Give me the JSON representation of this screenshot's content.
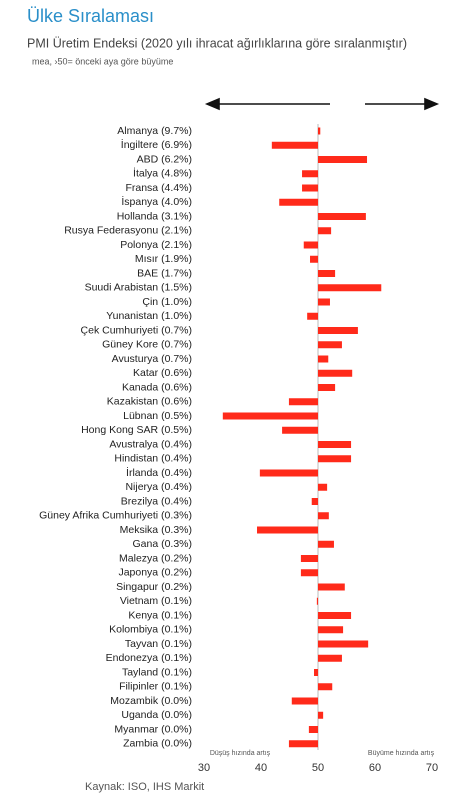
{
  "chart_data": {
    "type": "bar",
    "orientation": "horizontal",
    "title": "Ülke Sıralaması",
    "subtitle": "PMI Üretim Endeksi (2020 yılı ihracat ağırlıklarına göre sıralanmıştır)",
    "note": "mea, ›50= önceki aya göre büyüme",
    "annotations": [
      "Düşüş hızında artış",
      "Büyüme hızında artış"
    ],
    "source": "Kaynak: ISO, IHS Markit",
    "categories": [
      "Almanya (9.7%)",
      "İngiltere (6.9%)",
      "ABD (6.2%)",
      "İtalya (4.8%)",
      "Fransa (4.4%)",
      "İspanya (4.0%)",
      "Hollanda (3.1%)",
      "Rusya Federasyonu (2.1%)",
      "Polonya (2.1%)",
      "Mısır (1.9%)",
      "BAE (1.7%)",
      "Suudi Arabistan (1.5%)",
      "Çin (1.0%)",
      "Yunanistan (1.0%)",
      "Çek Cumhuriyeti (0.7%)",
      "Güney Kore (0.7%)",
      "Avusturya (0.7%)",
      "Katar (0.6%)",
      "Kanada (0.6%)",
      "Kazakistan (0.6%)",
      "Lübnan (0.5%)",
      "Hong Kong SAR (0.5%)",
      "Avustralya (0.4%)",
      "Hindistan (0.4%)",
      "İrlanda (0.4%)",
      "Nijerya (0.4%)",
      "Brezilya (0.4%)",
      "Güney Afrika Cumhuriyeti (0.3%)",
      "Meksika (0.3%)",
      "Gana (0.3%)",
      "Malezya (0.2%)",
      "Japonya (0.2%)",
      "Singapur (0.2%)",
      "Vietnam (0.1%)",
      "Kenya (0.1%)",
      "Kolombiya (0.1%)",
      "Tayvan (0.1%)",
      "Endonezya (0.1%)",
      "Tayland (0.1%)",
      "Filipinler (0.1%)",
      "Mozambik (0.0%)",
      "Uganda (0.0%)",
      "Myanmar (0.0%)",
      "Zambia (0.0%)"
    ],
    "values": [
      50.4,
      41.9,
      58.6,
      47.2,
      47.2,
      43.2,
      58.4,
      52.3,
      47.5,
      48.6,
      53.0,
      61.1,
      52.1,
      48.1,
      57.0,
      54.2,
      51.8,
      56.0,
      53.0,
      44.9,
      33.3,
      43.7,
      55.8,
      55.8,
      39.8,
      51.6,
      48.9,
      51.9,
      39.3,
      52.8,
      47.0,
      47.0,
      54.7,
      49.8,
      55.8,
      54.4,
      58.8,
      54.2,
      49.3,
      52.5,
      45.4,
      50.9,
      48.4,
      44.9
    ],
    "color": "#ff2a1a",
    "baseline": 50,
    "xlim": [
      30,
      70
    ],
    "xticks": [
      30,
      40,
      50,
      60,
      70
    ]
  }
}
